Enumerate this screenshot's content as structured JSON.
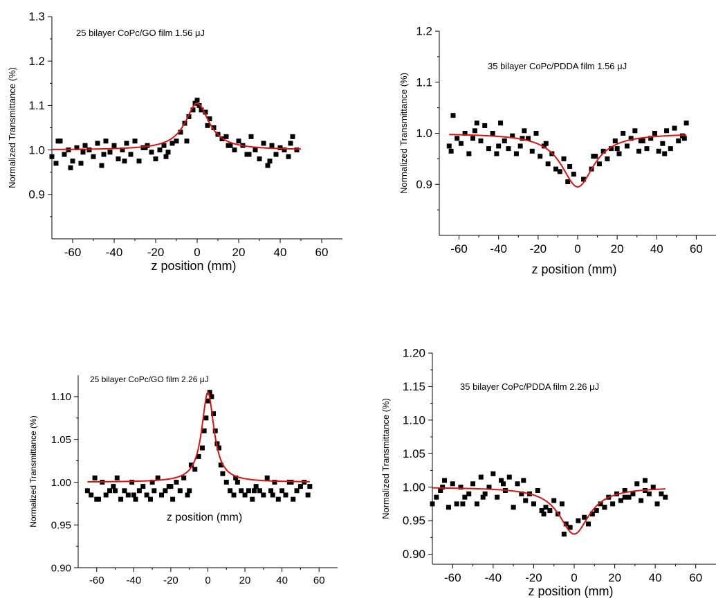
{
  "colors": {
    "points": "#000000",
    "fit": "#dd1111",
    "axis": "#000000",
    "background": "#ffffff"
  },
  "chart_data": [
    {
      "id": "p1",
      "type": "scatter",
      "title": "25 bilayer CoPc/GO film 1.56 μJ",
      "xlabel": "z position (mm)",
      "ylabel": "Normalized Transmittance (%)",
      "xlim": [
        -70,
        70
      ],
      "ylim": [
        0.8,
        1.3
      ],
      "xticks": [
        -60,
        -40,
        -20,
        0,
        20,
        40,
        60
      ],
      "xtick_labels": [
        "-60",
        "-40",
        "-20",
        "0",
        "20",
        "40",
        "60"
      ],
      "yticks": [
        0.9,
        1.0,
        1.1,
        1.2,
        1.3
      ],
      "ytick_labels": [
        "0.9",
        "1.0",
        "1.1",
        "1.2",
        "1.3"
      ],
      "series": [
        {
          "kind": "points",
          "x": [
            -70,
            -68,
            -66,
            -64,
            -62,
            -60,
            -58,
            -56,
            -54,
            -52,
            -50,
            -48,
            -46,
            -44,
            -42,
            -40,
            -38,
            -36,
            -34,
            -32,
            -30,
            -28,
            -26,
            -24,
            -22,
            -20,
            -18,
            -16,
            -14,
            -12,
            -10,
            -8,
            -6,
            -4,
            -2,
            -1,
            0,
            1,
            2,
            4,
            6,
            8,
            10,
            12,
            14,
            16,
            18,
            20,
            22,
            24,
            26,
            28,
            30,
            32,
            34,
            36,
            38,
            40,
            42,
            44,
            46,
            48,
            -67,
            -61,
            -55,
            -45,
            -35,
            -25,
            -15,
            -5,
            5,
            15,
            25,
            35,
            45
          ],
          "y": [
            0.985,
            0.97,
            1.02,
            0.99,
            1.0,
            0.975,
            1.005,
            0.97,
            1.01,
            1.0,
            0.985,
            1.015,
            0.965,
            1.02,
            0.995,
            1.01,
            0.98,
            1.0,
            1.015,
            0.99,
            1.02,
            0.975,
            1.005,
            1.01,
            0.995,
            0.98,
            1.0,
            1.01,
            0.995,
            1.015,
            1.02,
            1.04,
            1.06,
            1.075,
            1.09,
            1.105,
            1.112,
            1.1,
            1.09,
            1.085,
            1.07,
            1.05,
            1.035,
            1.025,
            1.03,
            1.01,
            1.0,
            1.02,
            1.01,
            0.99,
            1.03,
            1.0,
            0.98,
            1.015,
            0.965,
            1.01,
            0.99,
            1.005,
            1.0,
            0.985,
            1.03,
            1.0,
            1.02,
            0.96,
            0.995,
            0.99,
            0.975,
            1.005,
            0.985,
            1.02,
            1.055,
            1.01,
            0.99,
            0.975,
            1.015
          ]
        },
        {
          "kind": "fit",
          "model": "lorentzian",
          "baseline": 1.0,
          "amplitude": 0.105,
          "center": 0,
          "width": 7,
          "x_range": [
            -70,
            50
          ]
        }
      ]
    },
    {
      "id": "p2",
      "type": "scatter",
      "title": "35 bilayer CoPc/PDDA film 1.56 μJ",
      "xlabel": "z position (mm)",
      "ylabel": "Normalized Transmittance (%)",
      "xlim": [
        -70,
        70
      ],
      "ylim": [
        0.8,
        1.2
      ],
      "xticks": [
        -60,
        -40,
        -20,
        0,
        20,
        40,
        60
      ],
      "xtick_labels": [
        "-60",
        "-40",
        "-20",
        "0",
        "20",
        "40",
        "60"
      ],
      "yticks": [
        0.9,
        1.0,
        1.1,
        1.2
      ],
      "ytick_labels": [
        "0.9",
        "1.0",
        "1.1",
        "1.2"
      ],
      "series": [
        {
          "kind": "points",
          "x": [
            -65,
            -63,
            -61,
            -59,
            -57,
            -55,
            -53,
            -51,
            -49,
            -47,
            -45,
            -43,
            -41,
            -39,
            -37,
            -35,
            -33,
            -31,
            -29,
            -27,
            -25,
            -23,
            -21,
            -19,
            -17,
            -15,
            -13,
            -11,
            -9,
            -7,
            -5,
            -2,
            3,
            7,
            9,
            11,
            13,
            15,
            17,
            19,
            21,
            23,
            25,
            27,
            29,
            31,
            33,
            35,
            37,
            39,
            41,
            43,
            45,
            47,
            49,
            51,
            53,
            55,
            -64,
            -52,
            -40,
            -28,
            -16,
            -4,
            8,
            20,
            32,
            44,
            54
          ],
          "y": [
            0.975,
            1.035,
            0.99,
            0.98,
            1.0,
            0.96,
            0.99,
            1.02,
            0.985,
            1.015,
            0.97,
            1.0,
            0.96,
            1.02,
            0.985,
            0.97,
            0.995,
            0.96,
            0.975,
            1.005,
            0.99,
            0.965,
            1.0,
            0.955,
            0.975,
            0.94,
            0.96,
            0.93,
            0.925,
            0.95,
            0.905,
            0.92,
            0.91,
            0.93,
            0.955,
            0.94,
            0.965,
            0.95,
            0.97,
            0.985,
            0.96,
            1.0,
            0.975,
            0.99,
            1.005,
            0.965,
            0.985,
            0.97,
            0.99,
            1.0,
            0.965,
            0.98,
            1.005,
            0.97,
            1.01,
            0.985,
            0.995,
            1.02,
            0.965,
            1.005,
            0.975,
            0.99,
            0.98,
            0.935,
            0.955,
            0.97,
            0.985,
            0.96,
            0.99
          ]
        },
        {
          "kind": "fit",
          "model": "lorentzian",
          "baseline": 1.0,
          "amplitude": -0.105,
          "center": 0,
          "width": 10,
          "x_range": [
            -65,
            55
          ]
        }
      ]
    },
    {
      "id": "p3",
      "type": "scatter",
      "title": "25 bilayer CoPc/GO film 2.26 μJ",
      "xlabel": "z position (mm)",
      "ylabel": "Normalized Transmittance (%)",
      "xlim": [
        -70,
        70
      ],
      "ylim": [
        0.9,
        1.125
      ],
      "xticks": [
        -60,
        -40,
        -20,
        0,
        20,
        40,
        60
      ],
      "xtick_labels": [
        "-60",
        "-40",
        "-20",
        "0",
        "20",
        "40",
        "60"
      ],
      "yticks": [
        0.9,
        0.95,
        1.0,
        1.05,
        1.1
      ],
      "ytick_labels": [
        "0.90",
        "0.95",
        "1.00",
        "1.05",
        "1.10"
      ],
      "series": [
        {
          "kind": "points",
          "x": [
            -65,
            -63,
            -61,
            -59,
            -57,
            -55,
            -53,
            -51,
            -49,
            -47,
            -45,
            -43,
            -41,
            -39,
            -37,
            -35,
            -33,
            -31,
            -29,
            -27,
            -25,
            -23,
            -21,
            -19,
            -17,
            -15,
            -13,
            -11,
            -9,
            -7,
            -5,
            -3,
            -2,
            -1,
            0,
            1,
            2,
            3,
            4,
            5,
            6,
            7,
            8,
            10,
            12,
            14,
            16,
            18,
            20,
            22,
            24,
            26,
            28,
            30,
            32,
            34,
            36,
            38,
            40,
            42,
            44,
            46,
            48,
            50,
            52,
            54,
            -60,
            -50,
            -40,
            -30,
            -20,
            -10,
            15,
            25,
            35,
            45,
            55
          ],
          "y": [
            0.99,
            0.985,
            1.005,
            0.98,
            1.0,
            0.985,
            0.99,
            0.995,
            1.005,
            0.98,
            0.99,
            0.985,
            1.0,
            0.98,
            0.99,
            0.995,
            0.985,
            0.98,
            0.99,
            1.005,
            0.985,
            0.99,
            0.995,
            0.98,
            1.0,
            0.99,
            1.005,
            0.985,
            1.02,
            1.015,
            1.03,
            1.04,
            1.06,
            1.075,
            1.095,
            1.105,
            1.1,
            1.08,
            1.06,
            1.045,
            1.04,
            1.02,
            1.01,
            1.0,
            0.99,
            0.985,
            1.0,
            0.99,
            0.985,
            0.99,
            0.98,
            0.995,
            0.99,
            0.985,
            1.005,
            0.99,
            1.0,
            0.98,
            0.99,
            0.985,
            1.0,
            0.98,
            0.99,
            0.995,
            1.0,
            0.985,
            0.98,
            0.99,
            0.985,
            1.0,
            0.995,
            0.99,
            1.005,
            0.99,
            0.985,
            1.0,
            0.995
          ]
        },
        {
          "kind": "fit",
          "model": "lorentzian",
          "baseline": 1.0,
          "amplitude": 0.105,
          "center": 0,
          "width": 4,
          "x_range": [
            -65,
            55
          ]
        }
      ]
    },
    {
      "id": "p4",
      "type": "scatter",
      "title": "35 bilayer CoPc/PDDA film 2.26 μJ",
      "xlabel": "z position (mm)",
      "ylabel": "Normalized Transmittance (%)",
      "xlim": [
        -70,
        70
      ],
      "ylim": [
        0.885,
        1.2
      ],
      "xticks": [
        -60,
        -40,
        -20,
        0,
        20,
        40,
        60
      ],
      "xtick_labels": [
        "-60",
        "-40",
        "-20",
        "0",
        "20",
        "40",
        "60"
      ],
      "yticks": [
        0.9,
        0.95,
        1.0,
        1.05,
        1.1,
        1.15,
        1.2
      ],
      "ytick_labels": [
        "0.90",
        "0.95",
        "1.00",
        "1.05",
        "1.10",
        "1.15",
        "1.20"
      ],
      "series": [
        {
          "kind": "points",
          "x": [
            -70,
            -68,
            -66,
            -64,
            -62,
            -60,
            -58,
            -56,
            -54,
            -52,
            -50,
            -48,
            -46,
            -44,
            -42,
            -40,
            -38,
            -36,
            -34,
            -32,
            -30,
            -28,
            -26,
            -24,
            -22,
            -20,
            -18,
            -16,
            -14,
            -12,
            -10,
            -8,
            -6,
            -4,
            -2,
            2,
            5,
            7,
            9,
            11,
            13,
            15,
            17,
            19,
            21,
            23,
            25,
            27,
            29,
            31,
            33,
            35,
            37,
            39,
            41,
            43,
            45,
            -65,
            -55,
            -45,
            -35,
            -25,
            -15,
            -5,
            15,
            25,
            35
          ],
          "y": [
            0.975,
            0.985,
            0.995,
            1.01,
            0.97,
            1.005,
            0.975,
            1.0,
            0.985,
            0.99,
            1.005,
            0.975,
            1.015,
            0.99,
            1.0,
            1.02,
            0.985,
            1.01,
            0.995,
            1.015,
            0.97,
            1.005,
            0.99,
            0.98,
            0.99,
            0.975,
            0.995,
            0.965,
            0.97,
            0.965,
            0.98,
            0.96,
            0.975,
            0.945,
            0.94,
            0.95,
            0.955,
            0.945,
            0.96,
            0.965,
            0.975,
            0.97,
            0.985,
            0.975,
            0.99,
            0.98,
            0.995,
            0.985,
            0.99,
            1.005,
            0.98,
            1.01,
            0.99,
            1.0,
            0.975,
            0.99,
            0.985,
            1.0,
            0.975,
            0.985,
            1.005,
            1.01,
            0.96,
            0.93,
            0.97,
            0.985,
            0.995
          ]
        },
        {
          "kind": "fit",
          "model": "lorentzian",
          "baseline": 1.0,
          "amplitude": -0.07,
          "center": 0,
          "width": 9,
          "x_range": [
            -70,
            45
          ]
        }
      ]
    }
  ]
}
